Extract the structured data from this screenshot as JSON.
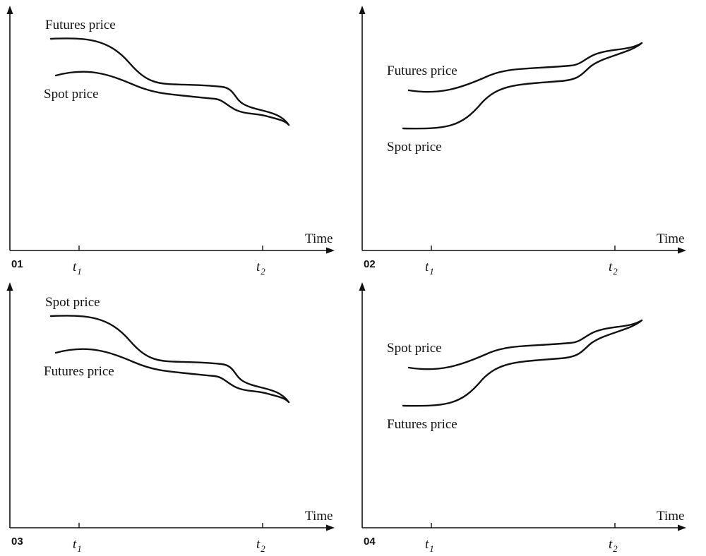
{
  "chart_data": [
    {
      "type": "line",
      "id": "01",
      "xlabel": "Time",
      "ylabel": "",
      "x_ticks": [
        {
          "var": "t",
          "sub": "1"
        },
        {
          "var": "t",
          "sub": "2"
        }
      ],
      "trend": "decreasing",
      "series": [
        {
          "name": "Futures price",
          "position": "upper"
        },
        {
          "name": "Spot price",
          "position": "lower"
        }
      ]
    },
    {
      "type": "line",
      "id": "02",
      "xlabel": "Time",
      "ylabel": "",
      "x_ticks": [
        {
          "var": "t",
          "sub": "1"
        },
        {
          "var": "t",
          "sub": "2"
        }
      ],
      "trend": "increasing",
      "series": [
        {
          "name": "Futures price",
          "position": "upper"
        },
        {
          "name": "Spot price",
          "position": "lower"
        }
      ]
    },
    {
      "type": "line",
      "id": "03",
      "xlabel": "Time",
      "ylabel": "",
      "x_ticks": [
        {
          "var": "t",
          "sub": "1"
        },
        {
          "var": "t",
          "sub": "2"
        }
      ],
      "trend": "decreasing",
      "series": [
        {
          "name": "Spot price",
          "position": "upper"
        },
        {
          "name": "Futures price",
          "position": "lower"
        }
      ]
    },
    {
      "type": "line",
      "id": "04",
      "xlabel": "Time",
      "ylabel": "",
      "x_ticks": [
        {
          "var": "t",
          "sub": "1"
        },
        {
          "var": "t",
          "sub": "2"
        }
      ],
      "trend": "increasing",
      "series": [
        {
          "name": "Spot price",
          "position": "upper"
        },
        {
          "name": "Futures price",
          "position": "lower"
        }
      ]
    }
  ]
}
